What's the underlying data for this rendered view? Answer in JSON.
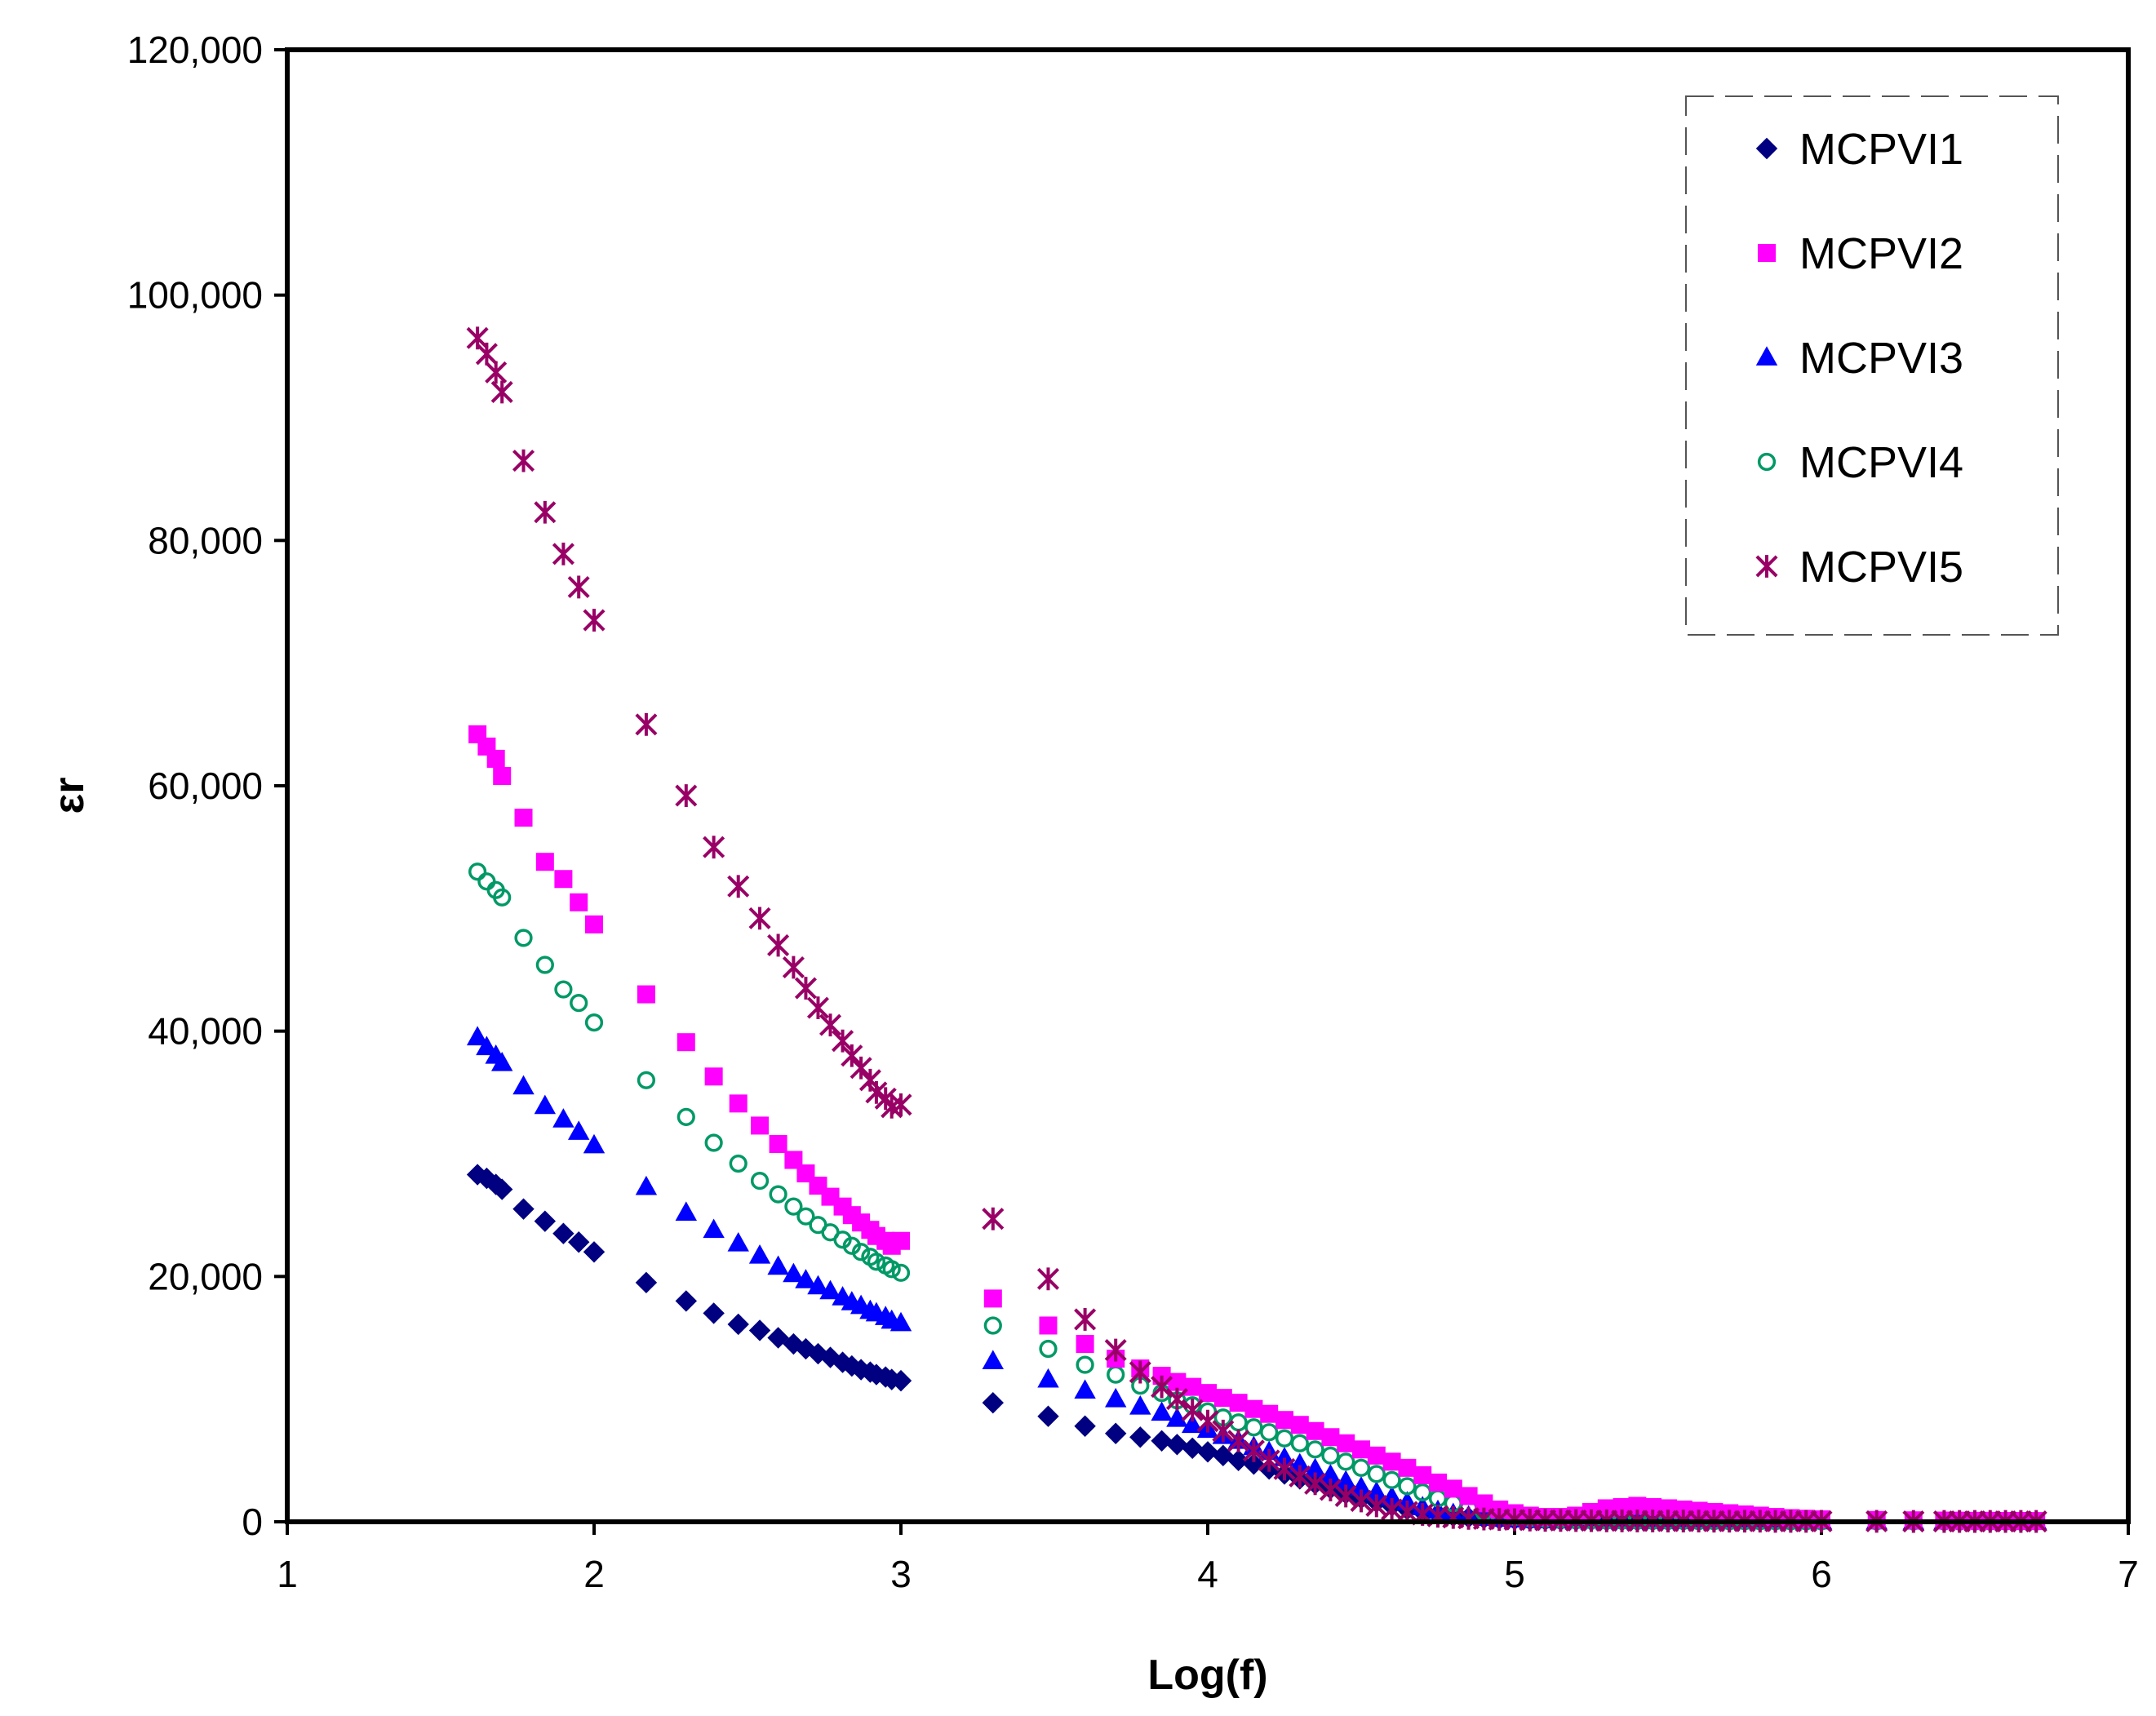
{
  "chart_data": {
    "type": "scatter",
    "title": "",
    "xlabel": "Log(f)",
    "ylabel": "εr",
    "xlim": [
      1,
      7
    ],
    "ylim": [
      0,
      120000
    ],
    "xticks": [
      1,
      2,
      3,
      4,
      5,
      6,
      7
    ],
    "xtick_labels": [
      "1",
      "2",
      "3",
      "4",
      "5",
      "6",
      "7"
    ],
    "yticks": [
      0,
      20000,
      40000,
      60000,
      80000,
      100000,
      120000
    ],
    "ytick_labels": [
      "0",
      "20,000",
      "40,000",
      "60,000",
      "80,000",
      "100,000",
      "120,000"
    ],
    "grid": false,
    "legend_position": "top-right",
    "x": [
      1.62,
      1.65,
      1.68,
      1.7,
      1.77,
      1.84,
      1.9,
      1.95,
      2.0,
      2.17,
      2.3,
      2.39,
      2.47,
      2.54,
      2.6,
      2.65,
      2.69,
      2.73,
      2.77,
      2.81,
      2.84,
      2.87,
      2.9,
      2.92,
      2.95,
      2.97,
      3.0,
      3.3,
      3.48,
      3.6,
      3.7,
      3.78,
      3.85,
      3.9,
      3.95,
      4.0,
      4.05,
      4.1,
      4.15,
      4.2,
      4.25,
      4.3,
      4.35,
      4.4,
      4.45,
      4.5,
      4.55,
      4.6,
      4.65,
      4.7,
      4.75,
      4.8,
      4.85,
      4.9,
      4.95,
      5.0,
      5.05,
      5.1,
      5.15,
      5.2,
      5.25,
      5.3,
      5.35,
      5.4,
      5.45,
      5.5,
      5.55,
      5.6,
      5.65,
      5.7,
      5.75,
      5.8,
      5.85,
      5.9,
      5.95,
      6.0,
      6.18,
      6.3,
      6.4,
      6.45,
      6.5,
      6.55,
      6.6,
      6.65,
      6.7
    ],
    "series": [
      {
        "name": "MCPVI1",
        "marker": "diamond",
        "color": "#000080",
        "values": [
          28300,
          28000,
          27500,
          27100,
          25500,
          24500,
          23500,
          22800,
          22000,
          19500,
          18000,
          17000,
          16100,
          15600,
          15000,
          14500,
          14100,
          13700,
          13400,
          13000,
          12700,
          12400,
          12200,
          12000,
          11800,
          11600,
          11500,
          9700,
          8600,
          7800,
          7200,
          6900,
          6600,
          6300,
          6000,
          5700,
          5400,
          5000,
          4700,
          4300,
          3900,
          3500,
          3100,
          2700,
          2300,
          1900,
          1600,
          1300,
          1000,
          800,
          600,
          450,
          350,
          280,
          220,
          180,
          150,
          130,
          110,
          100,
          90,
          80,
          80,
          70,
          70,
          60,
          60,
          60,
          50,
          50,
          50,
          50,
          40,
          40,
          40,
          40,
          40,
          30,
          30,
          30,
          30,
          30,
          30,
          30,
          30
        ]
      },
      {
        "name": "MCPVI2",
        "marker": "square",
        "color": "#ff00ff",
        "values": [
          64200,
          63200,
          62200,
          60800,
          57400,
          53800,
          52400,
          50500,
          48700,
          43000,
          39100,
          36300,
          34100,
          32300,
          30800,
          29500,
          28400,
          27400,
          26500,
          25700,
          25000,
          24400,
          23800,
          23300,
          22900,
          22500,
          22900,
          18200,
          16000,
          14500,
          13300,
          12500,
          11900,
          11400,
          11000,
          10500,
          10100,
          9700,
          9200,
          8800,
          8300,
          7900,
          7400,
          6900,
          6400,
          5900,
          5400,
          4900,
          4400,
          3800,
          3200,
          2700,
          2100,
          1500,
          1000,
          700,
          500,
          400,
          400,
          500,
          800,
          1100,
          1200,
          1300,
          1200,
          1100,
          1000,
          900,
          800,
          700,
          600,
          500,
          400,
          300,
          250,
          200,
          150,
          120,
          100,
          90,
          80,
          80,
          70,
          70,
          60
        ]
      },
      {
        "name": "MCPVI3",
        "marker": "triangle",
        "color": "#0000ff",
        "values": [
          39500,
          38700,
          38000,
          37400,
          35500,
          33900,
          32800,
          31800,
          30700,
          27300,
          25200,
          23800,
          22700,
          21700,
          20800,
          20200,
          19700,
          19200,
          18800,
          18300,
          17900,
          17600,
          17200,
          17000,
          16700,
          16400,
          16200,
          13100,
          11600,
          10700,
          10000,
          9400,
          8900,
          8400,
          7900,
          7500,
          7000,
          6600,
          6100,
          5700,
          5200,
          4700,
          4300,
          3800,
          3300,
          2800,
          2400,
          2000,
          1600,
          1200,
          900,
          650,
          450,
          330,
          250,
          190,
          150,
          130,
          110,
          100,
          90,
          80,
          80,
          70,
          70,
          60,
          60,
          60,
          50,
          50,
          50,
          50,
          40,
          40,
          40,
          40,
          40,
          30,
          30,
          30,
          30,
          30,
          30,
          30,
          30
        ]
      },
      {
        "name": "MCPVI4",
        "marker": "circle",
        "color": "#009966",
        "values": [
          53000,
          52200,
          51500,
          50900,
          47600,
          45400,
          43400,
          42300,
          40700,
          36000,
          33000,
          30900,
          29200,
          27800,
          26700,
          25700,
          24900,
          24200,
          23600,
          23000,
          22500,
          22000,
          21600,
          21200,
          20900,
          20600,
          20300,
          16000,
          14100,
          12800,
          12000,
          11100,
          10500,
          9900,
          9500,
          9000,
          8500,
          8100,
          7700,
          7300,
          6800,
          6400,
          5900,
          5400,
          4900,
          4400,
          3900,
          3400,
          2900,
          2400,
          1900,
          1500,
          1100,
          800,
          550,
          400,
          300,
          230,
          180,
          150,
          130,
          110,
          100,
          90,
          80,
          70,
          70,
          60,
          60,
          50,
          50,
          50,
          50,
          40,
          40,
          40,
          40,
          40,
          30,
          30,
          30,
          30,
          30,
          30,
          30
        ]
      },
      {
        "name": "MCPVI5",
        "marker": "asterisk",
        "color": "#990066",
        "values": [
          96500,
          95200,
          93700,
          92100,
          86500,
          82300,
          78900,
          76200,
          73500,
          65000,
          59200,
          55000,
          51800,
          49200,
          47000,
          45200,
          43500,
          41900,
          40500,
          39200,
          38000,
          37000,
          36000,
          35000,
          34500,
          33800,
          34000,
          24700,
          19800,
          16500,
          14000,
          12200,
          11000,
          10000,
          9100,
          8200,
          7400,
          6600,
          5800,
          5000,
          4300,
          3700,
          3100,
          2600,
          2100,
          1700,
          1300,
          1000,
          800,
          600,
          450,
          350,
          280,
          230,
          190,
          160,
          140,
          120,
          110,
          100,
          90,
          80,
          80,
          70,
          70,
          60,
          60,
          60,
          50,
          50,
          50,
          50,
          40,
          40,
          40,
          40,
          40,
          30,
          30,
          30,
          30,
          30,
          30,
          30,
          30
        ]
      }
    ]
  }
}
